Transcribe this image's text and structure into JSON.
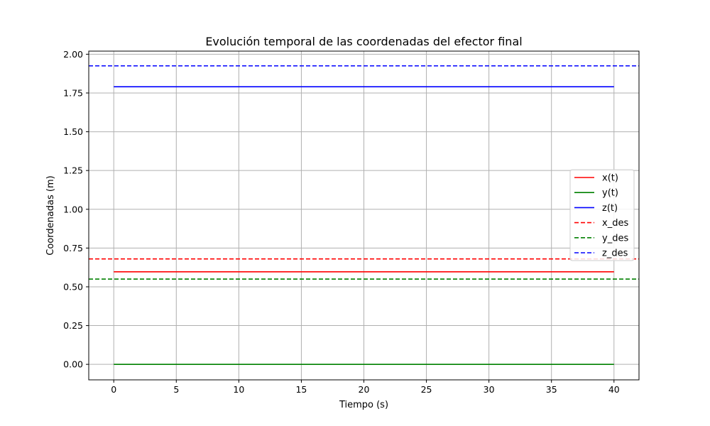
{
  "chart_data": {
    "type": "line",
    "title": "Evolución temporal de las coordenadas del efector final",
    "xlabel": "Tiempo (s)",
    "ylabel": "Coordenadas (m)",
    "xlim": [
      -2,
      42
    ],
    "ylim": [
      -0.1,
      2.02
    ],
    "xticks": [
      0,
      5,
      10,
      15,
      20,
      25,
      30,
      35,
      40
    ],
    "xtick_labels": [
      "0",
      "5",
      "10",
      "15",
      "20",
      "25",
      "30",
      "35",
      "40"
    ],
    "yticks": [
      0.0,
      0.25,
      0.5,
      0.75,
      1.0,
      1.25,
      1.5,
      1.75,
      2.0
    ],
    "ytick_labels": [
      "0.00",
      "0.25",
      "0.50",
      "0.75",
      "1.00",
      "1.25",
      "1.50",
      "1.75",
      "2.00"
    ],
    "grid": true,
    "legend_position": "center-right",
    "series": [
      {
        "name": "x(t)",
        "color": "#ff0000",
        "style": "solid",
        "x": [
          0,
          40
        ],
        "y": [
          0.597,
          0.597
        ]
      },
      {
        "name": "y(t)",
        "color": "#008000",
        "style": "solid",
        "x": [
          0,
          40
        ],
        "y": [
          0.0,
          0.0
        ]
      },
      {
        "name": "z(t)",
        "color": "#0000ff",
        "style": "solid",
        "x": [
          0,
          40
        ],
        "y": [
          1.79,
          1.79
        ]
      },
      {
        "name": "x_des",
        "color": "#ff0000",
        "style": "dashed",
        "hline": 0.68
      },
      {
        "name": "y_des",
        "color": "#008000",
        "style": "dashed",
        "hline": 0.55
      },
      {
        "name": "z_des",
        "color": "#0000ff",
        "style": "dashed",
        "hline": 1.925
      }
    ]
  }
}
